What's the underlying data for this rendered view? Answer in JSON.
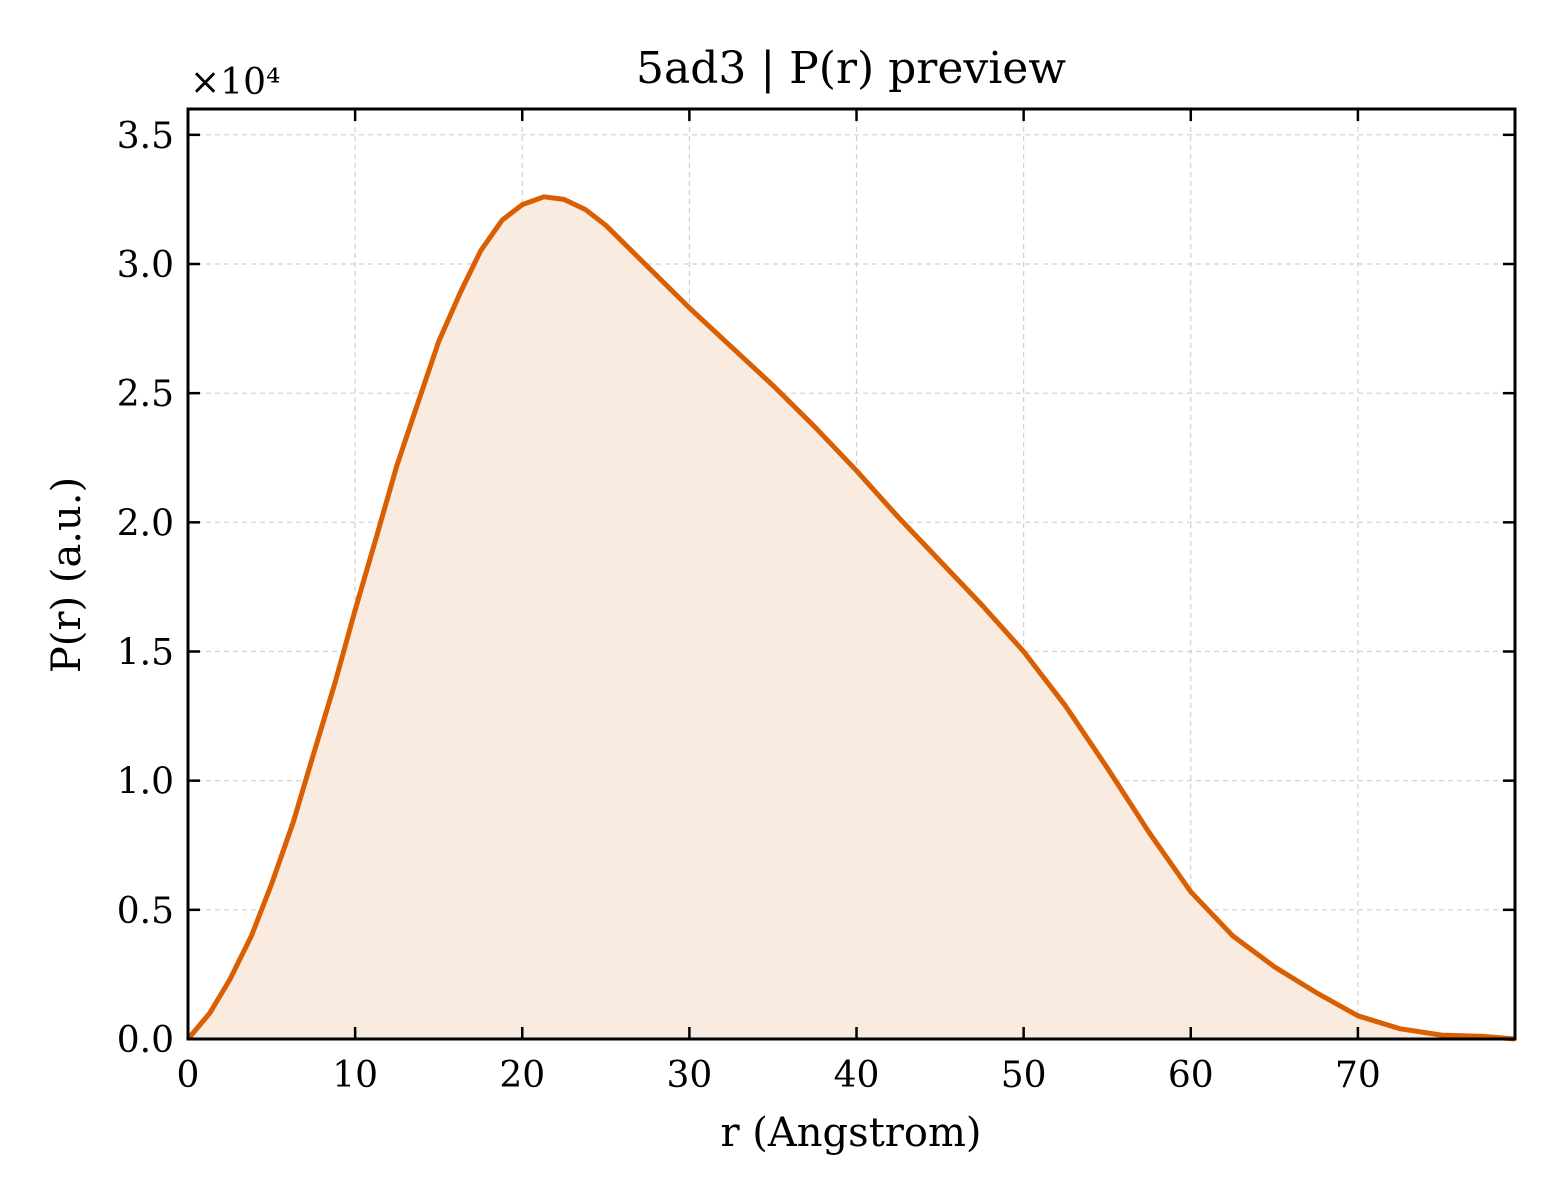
{
  "chart_data": {
    "type": "area",
    "title": "5ad3 | P(r) preview",
    "xlabel": "r (Angstrom)",
    "ylabel": "P(r) (a.u.)",
    "y_multiplier_label": "×10⁴",
    "xlim": [
      0,
      79.4
    ],
    "ylim": [
      0,
      3.6
    ],
    "x_ticks": [
      0,
      10,
      20,
      30,
      40,
      50,
      60,
      70
    ],
    "y_ticks": [
      0,
      0.5,
      1.0,
      1.5,
      2.0,
      2.5,
      3.0,
      3.5
    ],
    "x_tick_labels": [
      "0",
      "10",
      "20",
      "30",
      "40",
      "50",
      "60",
      "70"
    ],
    "y_tick_labels": [
      "0.0",
      "0.5",
      "1.0",
      "1.5",
      "2.0",
      "2.5",
      "3.0",
      "3.5"
    ],
    "grid": true,
    "line_color": "#d95f02",
    "fill_color": "#f9ebe0",
    "series": [
      {
        "x": [
          0,
          1.3,
          2.5,
          3.8,
          5.0,
          6.3,
          7.5,
          8.8,
          10.0,
          11.3,
          12.5,
          13.8,
          15.0,
          16.3,
          17.5,
          18.8,
          20.0,
          21.3,
          22.5,
          23.8,
          25.0,
          27.5,
          30.0,
          32.5,
          35.0,
          37.5,
          40.0,
          42.5,
          45.0,
          47.5,
          50.0,
          52.5,
          55.0,
          57.5,
          60.0,
          62.5,
          65.0,
          67.5,
          70.0,
          72.5,
          75.0,
          77.5,
          79.4
        ],
        "y": [
          0.0,
          0.1,
          0.23,
          0.4,
          0.6,
          0.84,
          1.1,
          1.38,
          1.66,
          1.95,
          2.22,
          2.47,
          2.7,
          2.89,
          3.05,
          3.17,
          3.23,
          3.26,
          3.25,
          3.21,
          3.15,
          2.99,
          2.83,
          2.68,
          2.53,
          2.37,
          2.2,
          2.02,
          1.85,
          1.68,
          1.5,
          1.29,
          1.05,
          0.8,
          0.57,
          0.4,
          0.28,
          0.18,
          0.09,
          0.04,
          0.015,
          0.01,
          0.0
        ]
      }
    ]
  }
}
